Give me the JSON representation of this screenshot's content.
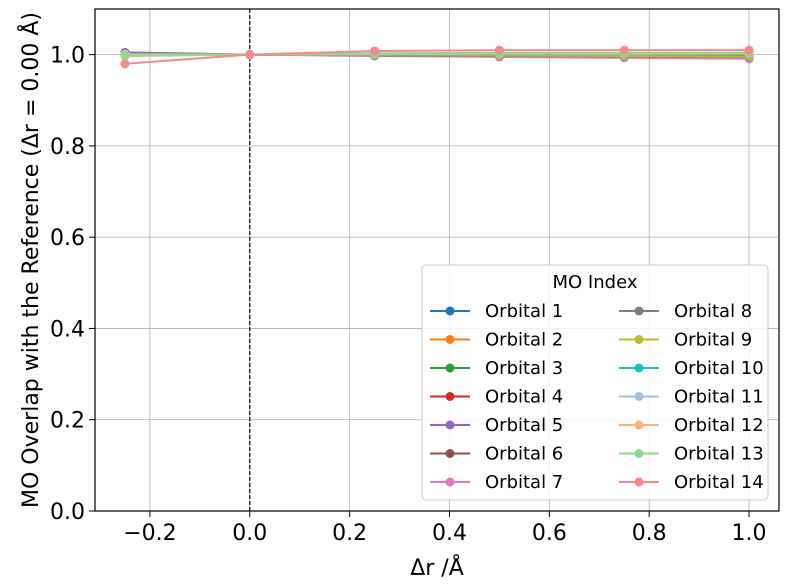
{
  "chart_data": {
    "type": "line",
    "title": "",
    "xlabel": "Δr /Å",
    "ylabel": "MO Overlap with the Reference (Δr = 0.00 Å)",
    "xlim": [
      -0.31,
      1.06
    ],
    "ylim": [
      0.0,
      1.1
    ],
    "x": [
      -0.25,
      0.0,
      0.25,
      0.5,
      0.75,
      1.0
    ],
    "xticks": [
      -0.2,
      0.0,
      0.2,
      0.4,
      0.6,
      0.8,
      1.0
    ],
    "xtick_labels": [
      "−0.2",
      "0.0",
      "0.2",
      "0.4",
      "0.6",
      "0.8",
      "1.0"
    ],
    "yticks": [
      0.0,
      0.2,
      0.4,
      0.6,
      0.8,
      1.0
    ],
    "ytick_labels": [
      "0.0",
      "0.2",
      "0.4",
      "0.6",
      "0.8",
      "1.0"
    ],
    "grid": true,
    "reference_line": {
      "x": 0.0,
      "style": "dashed",
      "color": "#000000"
    },
    "legend": {
      "title": "MO Index",
      "placement": "lower-right",
      "columns": 2
    },
    "series": [
      {
        "name": "Orbital 1",
        "color": "#1f77b4",
        "values": [
          1.0,
          1.0,
          1.0,
          1.0,
          1.0,
          1.0
        ]
      },
      {
        "name": "Orbital 2",
        "color": "#ff7f0e",
        "values": [
          1.0,
          1.0,
          1.0,
          1.0,
          1.0,
          1.0
        ]
      },
      {
        "name": "Orbital 3",
        "color": "#2ca02c",
        "values": [
          0.999,
          1.0,
          0.999,
          0.998,
          0.997,
          0.997
        ]
      },
      {
        "name": "Orbital 4",
        "color": "#d62728",
        "values": [
          1.0,
          1.0,
          1.0,
          1.0,
          1.0,
          0.999
        ]
      },
      {
        "name": "Orbital 5",
        "color": "#9467bd",
        "values": [
          1.002,
          1.0,
          0.999,
          0.997,
          0.996,
          0.995
        ]
      },
      {
        "name": "Orbital 6",
        "color": "#8c564b",
        "values": [
          1.004,
          1.0,
          0.999,
          0.998,
          0.997,
          0.996
        ]
      },
      {
        "name": "Orbital 7",
        "color": "#e377c2",
        "values": [
          1.003,
          1.0,
          0.997,
          0.995,
          0.993,
          0.991
        ]
      },
      {
        "name": "Orbital 8",
        "color": "#7f7f7f",
        "values": [
          1.005,
          1.0,
          0.998,
          0.997,
          0.996,
          0.995
        ]
      },
      {
        "name": "Orbital 9",
        "color": "#bcbd22",
        "values": [
          0.998,
          1.0,
          0.999,
          0.998,
          0.997,
          0.996
        ]
      },
      {
        "name": "Orbital 10",
        "color": "#17becf",
        "values": [
          1.0,
          1.0,
          1.0,
          1.001,
          1.001,
          1.001
        ]
      },
      {
        "name": "Orbital 11",
        "color": "#9ec3e6",
        "values": [
          1.001,
          1.0,
          1.001,
          1.002,
          1.002,
          1.002
        ]
      },
      {
        "name": "Orbital 12",
        "color": "#ffb07a",
        "values": [
          0.999,
          1.0,
          1.002,
          1.003,
          1.003,
          1.003
        ]
      },
      {
        "name": "Orbital 13",
        "color": "#8fd98f",
        "values": [
          0.997,
          1.0,
          1.003,
          1.004,
          1.004,
          1.004
        ]
      },
      {
        "name": "Orbital 14",
        "color": "#f7888b",
        "values": [
          0.98,
          1.0,
          1.008,
          1.01,
          1.01,
          1.01
        ]
      }
    ]
  }
}
